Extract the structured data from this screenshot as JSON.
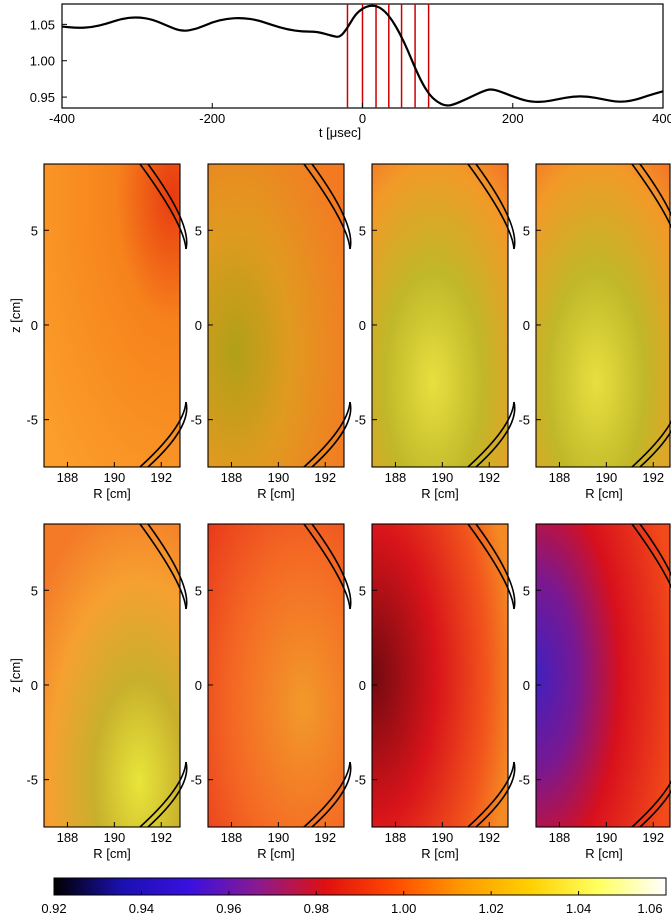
{
  "chart_data": [
    {
      "type": "line",
      "title": "",
      "xlabel_prefix": "t  [",
      "xlabel_mu": "μ",
      "xlabel_suffix": "sec]",
      "xlim": [
        -400,
        400
      ],
      "ylim": [
        0.935,
        1.078
      ],
      "xticks": [
        "-400",
        "-200",
        "0",
        "200",
        "400"
      ],
      "xtick_values": [
        -400,
        -200,
        0,
        200,
        400
      ],
      "yticks": [
        "0.95",
        "1.00",
        "1.05"
      ],
      "ytick_values": [
        0.95,
        1.0,
        1.05
      ],
      "series_color": "#000000",
      "marker_color": "#cc0000",
      "marker_times": [
        -20,
        0,
        18,
        35,
        52,
        70,
        88
      ],
      "x": [
        -400,
        -380,
        -360,
        -340,
        -320,
        -300,
        -280,
        -260,
        -240,
        -220,
        -200,
        -180,
        -160,
        -140,
        -120,
        -100,
        -80,
        -60,
        -40,
        -30,
        -20,
        -10,
        0,
        10,
        20,
        30,
        40,
        50,
        60,
        70,
        80,
        90,
        100,
        110,
        120,
        140,
        160,
        170,
        180,
        200,
        220,
        240,
        260,
        280,
        300,
        320,
        340,
        360,
        380,
        400
      ],
      "y": [
        1.047,
        1.045,
        1.046,
        1.051,
        1.058,
        1.06,
        1.057,
        1.048,
        1.04,
        1.044,
        1.053,
        1.058,
        1.059,
        1.056,
        1.049,
        1.043,
        1.04,
        1.04,
        1.034,
        1.032,
        1.045,
        1.063,
        1.072,
        1.076,
        1.075,
        1.068,
        1.055,
        1.037,
        1.015,
        0.99,
        0.968,
        0.952,
        0.943,
        0.938,
        0.939,
        0.948,
        0.958,
        0.961,
        0.959,
        0.951,
        0.944,
        0.943,
        0.947,
        0.951,
        0.951,
        0.947,
        0.943,
        0.945,
        0.952,
        0.958
      ]
    },
    {
      "type": "heatmap",
      "panels_rows": 2,
      "panels_cols": 4,
      "xlabel_prefix": "R  [cm]",
      "ylabel": "z  [cm]",
      "xlim": [
        187,
        192.8
      ],
      "ylim": [
        -7.5,
        8.5
      ],
      "xticks": [
        "188",
        "190",
        "192"
      ],
      "xtick_values": [
        188,
        190,
        192
      ],
      "yticks": [
        "5",
        "0",
        "-5"
      ],
      "ytick_values": [
        5,
        0,
        -5
      ],
      "panels": [
        {
          "center_value": 1.012,
          "gradient": "edge-red"
        },
        {
          "center_value": 1.013,
          "gradient": "lower-green"
        },
        {
          "center_value": 1.023,
          "gradient": "lower-yellow"
        },
        {
          "center_value": 1.028,
          "gradient": "lower-yellow"
        },
        {
          "center_value": 1.018,
          "gradient": "lower-right-yellow"
        },
        {
          "center_value": 1.003,
          "gradient": "red-orange"
        },
        {
          "center_value": 0.985,
          "gradient": "dark-left"
        },
        {
          "center_value": 0.965,
          "gradient": "purple-left"
        }
      ]
    }
  ],
  "colorbar": {
    "ticks": [
      "0.92",
      "0.94",
      "0.96",
      "0.98",
      "1.00",
      "1.02",
      "1.04",
      "1.06"
    ],
    "range": [
      0.92,
      1.06
    ],
    "stops": [
      "#000000",
      "#1a10b0",
      "#3a10e0",
      "#8a1a90",
      "#e01010",
      "#ff4a00",
      "#ff9a00",
      "#ffd000",
      "#ffff60",
      "#ffffff"
    ]
  }
}
